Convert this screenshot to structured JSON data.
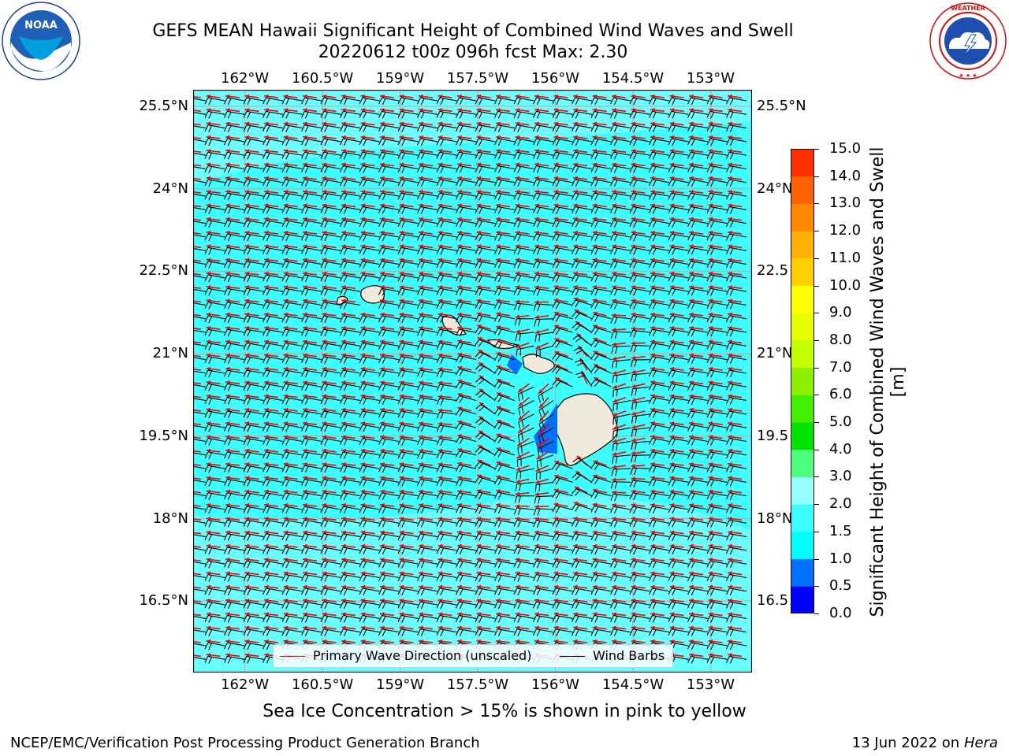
{
  "header": {
    "title_line1": "GEFS MEAN Hawaii Significant Height of Combined Wind Waves and Swell",
    "title_line2": "20220612 t00z 096h fcst   Max: 2.30"
  },
  "logos": {
    "noaa": {
      "text": "NOAA",
      "ring_text": "NATIONAL OCEANIC AND ATMOSPHERIC ADMINISTRATION · U.S. DEPARTMENT OF COMMERCE"
    },
    "nws": {
      "ring_text": "NATIONAL WEATHER SERVICE"
    }
  },
  "map": {
    "x_ticks": [
      "162°W",
      "160.5°W",
      "159°W",
      "157.5°W",
      "156°W",
      "154.5°W",
      "153°W"
    ],
    "y_ticks_left": [
      "25.5°N",
      "24°N",
      "22.5°N",
      "21°N",
      "19.5°N",
      "18°N",
      "16.5°N"
    ],
    "y_ticks_right": [
      "25.5°N",
      "24°N",
      "22.5",
      "21°N",
      "19.5",
      "18°N",
      "16.5"
    ],
    "lon_range": [
      -163,
      -152.2
    ],
    "lat_range": [
      15.2,
      25.8
    ],
    "legend": {
      "wave_direction": "Primary Wave Direction (unscaled)",
      "wind_barbs": "Wind Barbs"
    },
    "colors": {
      "wave_arrow": "#ff0000",
      "wind_barb": "#000000",
      "land": "#efebdc",
      "gridline": "#b0b0b0"
    }
  },
  "colorbar": {
    "levels": [
      "0.0",
      "0.5",
      "1.0",
      "1.5",
      "2.0",
      "3.0",
      "4.0",
      "5.0",
      "6.0",
      "7.0",
      "8.0",
      "9.0",
      "10.0",
      "11.0",
      "12.0",
      "13.0",
      "14.0",
      "15.0"
    ],
    "colors": [
      "#0000ff",
      "#0070ff",
      "#00ffff",
      "#3cffff",
      "#96ffff",
      "#4dff7d",
      "#00e400",
      "#40f000",
      "#8cf000",
      "#c4ff00",
      "#e8ff00",
      "#ffff00",
      "#ffd000",
      "#ffb000",
      "#ff8800",
      "#ff6000",
      "#ff3000"
    ],
    "label": "Significant Height of Combined Wind Waves and Swell [m]"
  },
  "footer": {
    "note": "Sea Ice Concentration > 15% is shown in pink to yellow",
    "left": "NCEP/EMC/Verification Post Processing Product Generation Branch",
    "date": "13 Jun 2022 on",
    "machine": "Hera"
  }
}
